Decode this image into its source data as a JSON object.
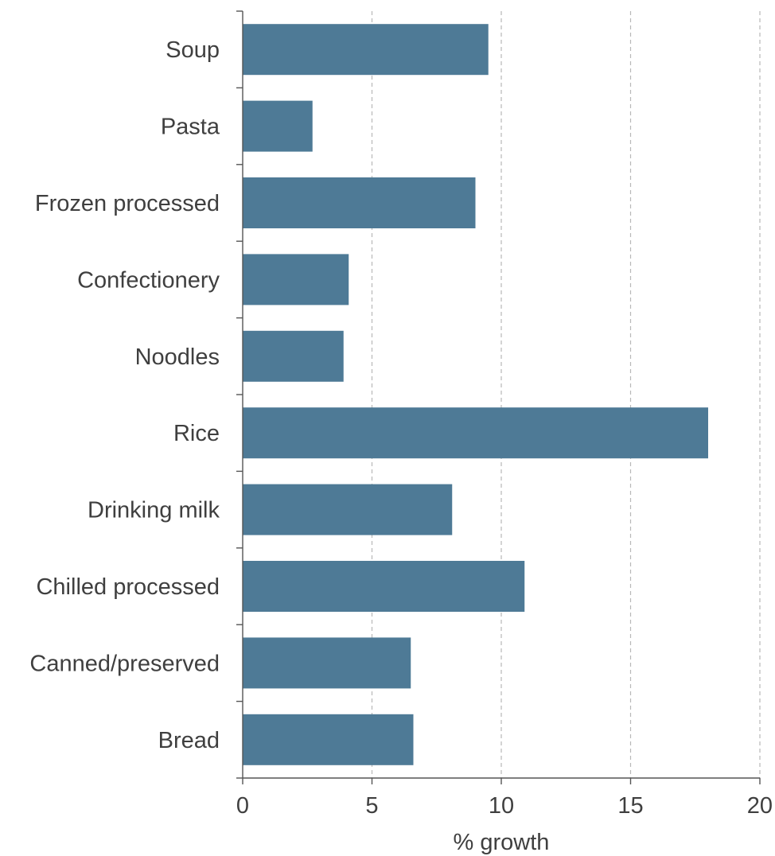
{
  "chart_data": {
    "type": "bar",
    "orientation": "horizontal",
    "title": "",
    "xlabel": "% growth",
    "ylabel": "",
    "categories": [
      "Soup",
      "Pasta",
      "Frozen processed",
      "Confectionery",
      "Noodles",
      "Rice",
      "Drinking milk",
      "Chilled processed",
      "Canned/preserved",
      "Bread"
    ],
    "values": [
      9.5,
      2.7,
      9.0,
      4.1,
      3.9,
      18.0,
      8.1,
      10.9,
      6.5,
      6.6
    ],
    "xlim": [
      0,
      20
    ],
    "xticks": [
      0,
      5,
      10,
      15,
      20
    ],
    "grid": "x dashed",
    "legend": "none",
    "bar_color": "#4e7a96"
  }
}
